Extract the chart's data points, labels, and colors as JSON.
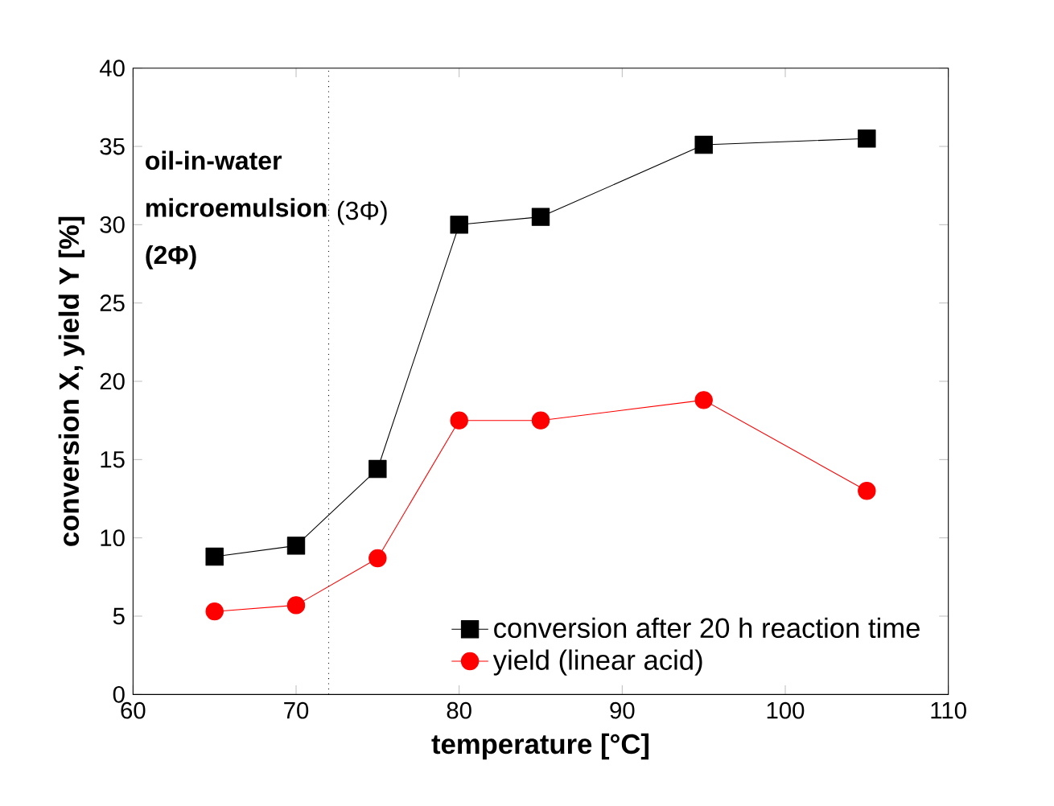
{
  "chart_data": {
    "type": "line",
    "xlabel": "temperature [°C]",
    "ylabel": "conversion X, yield Y [%]",
    "x": [
      65,
      70,
      75,
      80,
      85,
      95,
      105
    ],
    "series": [
      {
        "name": "conversion after 20 h reaction time",
        "color": "#000000",
        "marker": "square",
        "values": [
          8.8,
          9.5,
          14.4,
          30.0,
          30.5,
          35.1,
          35.5
        ]
      },
      {
        "name": "yield (linear acid)",
        "color": "#ff0000",
        "marker": "circle",
        "values": [
          5.3,
          5.7,
          8.7,
          17.5,
          17.5,
          18.8,
          13.0
        ]
      }
    ],
    "xlim": [
      60,
      110
    ],
    "xticks": [
      60,
      70,
      80,
      90,
      100,
      110
    ],
    "ylim": [
      0,
      40
    ],
    "yticks": [
      0,
      5,
      10,
      15,
      20,
      25,
      30,
      35,
      40
    ],
    "ref_lines": [
      {
        "axis": "x",
        "value": 72,
        "line_style": "dotted"
      }
    ],
    "annotations": [
      "oil-in-water microemulsion (2Φ)",
      "(3Φ)"
    ],
    "legend": "bottom right",
    "line_style": "solid"
  }
}
